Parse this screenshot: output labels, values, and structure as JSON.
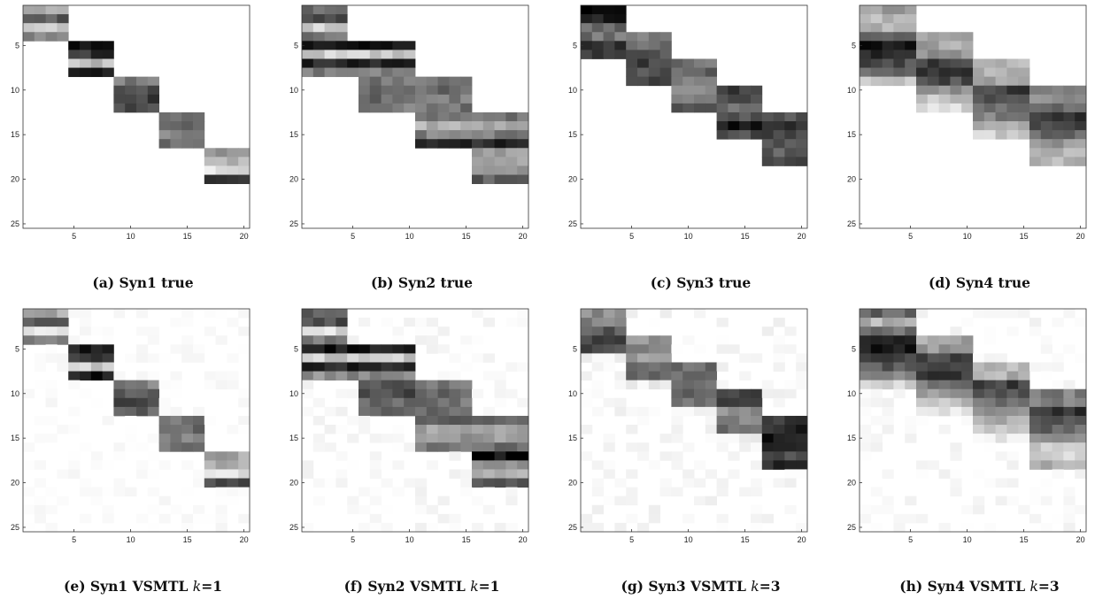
{
  "chart_data": [
    {
      "type": "heatmap",
      "caption": "(a) Syn1 true",
      "rows": 25,
      "cols": 20,
      "xticks": [
        5,
        10,
        15,
        20
      ],
      "yticks": [
        5,
        10,
        15,
        20,
        25
      ],
      "blocks": [
        {
          "rows": [
            1,
            4
          ],
          "cols": [
            1,
            4
          ],
          "shades": [
            0.35,
            0.65,
            0.2,
            0.5
          ]
        },
        {
          "rows": [
            5,
            8
          ],
          "cols": [
            5,
            8
          ],
          "shades": [
            0.95,
            0.8,
            0.25,
            0.9
          ]
        },
        {
          "rows": [
            9,
            12
          ],
          "cols": [
            9,
            12
          ],
          "shades": [
            0.5,
            0.7,
            0.75,
            0.7
          ]
        },
        {
          "rows": [
            13,
            16
          ],
          "cols": [
            13,
            16
          ],
          "shades": [
            0.55,
            0.65,
            0.5,
            0.55
          ]
        },
        {
          "rows": [
            17,
            20
          ],
          "cols": [
            17,
            20
          ],
          "shades": [
            0.4,
            0.3,
            0.1,
            0.75
          ]
        }
      ],
      "noise": 0
    },
    {
      "type": "heatmap",
      "caption": "(b) Syn2 true",
      "rows": 25,
      "cols": 20,
      "xticks": [
        5,
        10,
        15,
        20
      ],
      "yticks": [
        5,
        10,
        15,
        20,
        25
      ],
      "blocks": [
        {
          "rows": [
            1,
            4
          ],
          "cols": [
            1,
            4
          ],
          "shades": [
            0.6,
            0.7,
            0.2,
            0.55
          ]
        },
        {
          "rows": [
            5,
            8
          ],
          "cols": [
            1,
            10
          ],
          "shades": [
            0.9,
            0.2,
            0.85,
            0.5
          ]
        },
        {
          "rows": [
            9,
            12
          ],
          "cols": [
            6,
            10
          ],
          "shades": [
            0.55,
            0.6,
            0.6,
            0.5
          ]
        },
        {
          "rows": [
            9,
            12
          ],
          "cols": [
            11,
            15
          ],
          "shades": [
            0.55,
            0.6,
            0.5,
            0.55
          ]
        },
        {
          "rows": [
            13,
            16
          ],
          "cols": [
            11,
            20
          ],
          "shades": [
            0.55,
            0.3,
            0.5,
            0.85
          ]
        },
        {
          "rows": [
            17,
            20
          ],
          "cols": [
            16,
            20
          ],
          "shades": [
            0.35,
            0.35,
            0.4,
            0.65
          ]
        }
      ],
      "noise": 0
    },
    {
      "type": "heatmap",
      "caption": "(c) Syn3 true",
      "rows": 25,
      "cols": 20,
      "xticks": [
        5,
        10,
        15,
        20
      ],
      "yticks": [
        5,
        10,
        15,
        20,
        25
      ],
      "blocks": [
        {
          "rows": [
            1,
            6
          ],
          "cols": [
            1,
            4
          ],
          "shades": [
            0.95,
            0.9,
            0.6,
            0.55,
            0.8,
            0.75
          ]
        },
        {
          "rows": [
            4,
            9
          ],
          "cols": [
            5,
            8
          ],
          "shades": [
            0.5,
            0.55,
            0.7,
            0.75,
            0.7,
            0.7
          ]
        },
        {
          "rows": [
            7,
            12
          ],
          "cols": [
            9,
            12
          ],
          "shades": [
            0.55,
            0.6,
            0.5,
            0.5,
            0.55,
            0.65
          ]
        },
        {
          "rows": [
            10,
            15
          ],
          "cols": [
            13,
            16
          ],
          "shades": [
            0.75,
            0.7,
            0.6,
            0.65,
            0.9,
            0.7
          ]
        },
        {
          "rows": [
            13,
            18
          ],
          "cols": [
            17,
            20
          ],
          "shades": [
            0.7,
            0.8,
            0.75,
            0.7,
            0.65,
            0.75
          ]
        }
      ],
      "noise": 0
    },
    {
      "type": "heatmap",
      "caption": "(d) Syn4 true",
      "rows": 25,
      "cols": 20,
      "xticks": [
        5,
        10,
        15,
        20
      ],
      "yticks": [
        5,
        10,
        15,
        20,
        25
      ],
      "blocks": [
        {
          "rows": [
            1,
            9
          ],
          "cols": [
            1,
            5
          ],
          "shades": [
            0.4,
            0.3,
            0.3,
            0.55,
            0.9,
            0.85,
            0.7,
            0.55,
            0.25
          ]
        },
        {
          "rows": [
            4,
            12
          ],
          "cols": [
            6,
            10
          ],
          "shades": [
            0.35,
            0.35,
            0.4,
            0.75,
            0.8,
            0.7,
            0.45,
            0.25,
            0.15
          ]
        },
        {
          "rows": [
            7,
            15
          ],
          "cols": [
            11,
            15
          ],
          "shades": [
            0.3,
            0.3,
            0.35,
            0.75,
            0.65,
            0.55,
            0.5,
            0.35,
            0.2
          ]
        },
        {
          "rows": [
            10,
            18
          ],
          "cols": [
            16,
            20
          ],
          "shades": [
            0.45,
            0.45,
            0.55,
            0.8,
            0.75,
            0.6,
            0.4,
            0.3,
            0.3
          ]
        }
      ],
      "noise": 0
    },
    {
      "type": "heatmap",
      "caption": "(e) Syn1 VSMTL",
      "k": "1",
      "rows": 25,
      "cols": 20,
      "xticks": [
        5,
        10,
        15,
        20
      ],
      "yticks": [
        5,
        10,
        15,
        20,
        25
      ],
      "blocks": [
        {
          "rows": [
            1,
            4
          ],
          "cols": [
            1,
            4
          ],
          "shades": [
            0.35,
            0.65,
            0.15,
            0.55
          ]
        },
        {
          "rows": [
            5,
            8
          ],
          "cols": [
            5,
            8
          ],
          "shades": [
            0.9,
            0.8,
            0.2,
            0.9
          ]
        },
        {
          "rows": [
            9,
            12
          ],
          "cols": [
            9,
            12
          ],
          "shades": [
            0.5,
            0.65,
            0.7,
            0.6
          ]
        },
        {
          "rows": [
            13,
            16
          ],
          "cols": [
            13,
            16
          ],
          "shades": [
            0.55,
            0.6,
            0.5,
            0.55
          ]
        },
        {
          "rows": [
            17,
            20
          ],
          "cols": [
            17,
            20
          ],
          "shades": [
            0.35,
            0.3,
            0.1,
            0.7
          ]
        }
      ],
      "noise": 0.04
    },
    {
      "type": "heatmap",
      "caption": "(f) Syn2 VSMTL",
      "k": "1",
      "rows": 25,
      "cols": 20,
      "xticks": [
        5,
        10,
        15,
        20
      ],
      "yticks": [
        5,
        10,
        15,
        20,
        25
      ],
      "blocks": [
        {
          "rows": [
            1,
            4
          ],
          "cols": [
            1,
            4
          ],
          "shades": [
            0.6,
            0.7,
            0.15,
            0.55
          ]
        },
        {
          "rows": [
            5,
            8
          ],
          "cols": [
            1,
            10
          ],
          "shades": [
            0.9,
            0.2,
            0.85,
            0.45
          ]
        },
        {
          "rows": [
            9,
            12
          ],
          "cols": [
            6,
            10
          ],
          "shades": [
            0.65,
            0.7,
            0.6,
            0.6
          ]
        },
        {
          "rows": [
            9,
            12
          ],
          "cols": [
            11,
            15
          ],
          "shades": [
            0.55,
            0.6,
            0.55,
            0.6
          ]
        },
        {
          "rows": [
            13,
            16
          ],
          "cols": [
            11,
            20
          ],
          "shades": [
            0.6,
            0.35,
            0.4,
            0.55
          ]
        },
        {
          "rows": [
            17,
            20
          ],
          "cols": [
            16,
            20
          ],
          "shades": [
            0.95,
            0.4,
            0.35,
            0.7
          ]
        }
      ],
      "noise": 0.06
    },
    {
      "type": "heatmap",
      "caption": "(g) Syn3 VSMTL",
      "k": "3",
      "rows": 25,
      "cols": 20,
      "xticks": [
        5,
        10,
        15,
        20
      ],
      "yticks": [
        5,
        10,
        15,
        20,
        25
      ],
      "blocks": [
        {
          "rows": [
            1,
            6
          ],
          "cols": [
            1,
            4
          ],
          "shades": [
            0.45,
            0.5,
            0.65,
            0.7,
            0.7,
            0.05
          ]
        },
        {
          "rows": [
            4,
            9
          ],
          "cols": [
            5,
            8
          ],
          "shades": [
            0.4,
            0.45,
            0.35,
            0.6,
            0.65,
            0.05
          ]
        },
        {
          "rows": [
            7,
            12
          ],
          "cols": [
            9,
            12
          ],
          "shades": [
            0.6,
            0.6,
            0.55,
            0.6,
            0.55,
            0.05
          ]
        },
        {
          "rows": [
            10,
            15
          ],
          "cols": [
            13,
            16
          ],
          "shades": [
            0.7,
            0.75,
            0.45,
            0.5,
            0.55,
            0.05
          ]
        },
        {
          "rows": [
            13,
            18
          ],
          "cols": [
            17,
            20
          ],
          "shades": [
            0.8,
            0.85,
            0.9,
            0.9,
            0.7,
            0.85
          ]
        }
      ],
      "noise": 0.07
    },
    {
      "type": "heatmap",
      "caption": "(h) Syn4 VSMTL",
      "k": "3",
      "rows": 25,
      "cols": 20,
      "xticks": [
        5,
        10,
        15,
        20
      ],
      "yticks": [
        5,
        10,
        15,
        20,
        25
      ],
      "blocks": [
        {
          "rows": [
            1,
            9
          ],
          "cols": [
            1,
            5
          ],
          "shades": [
            0.6,
            0.3,
            0.55,
            0.9,
            0.9,
            0.75,
            0.65,
            0.5,
            0.2
          ]
        },
        {
          "rows": [
            4,
            12
          ],
          "cols": [
            6,
            10
          ],
          "shades": [
            0.35,
            0.4,
            0.75,
            0.75,
            0.8,
            0.55,
            0.4,
            0.25,
            0.1
          ]
        },
        {
          "rows": [
            7,
            15
          ],
          "cols": [
            11,
            15
          ],
          "shades": [
            0.3,
            0.3,
            0.75,
            0.7,
            0.55,
            0.45,
            0.35,
            0.2,
            0.05
          ]
        },
        {
          "rows": [
            10,
            18
          ],
          "cols": [
            16,
            20
          ],
          "shades": [
            0.5,
            0.5,
            0.8,
            0.7,
            0.6,
            0.4,
            0.2,
            0.15,
            0.3
          ]
        }
      ],
      "noise": 0.06
    }
  ]
}
